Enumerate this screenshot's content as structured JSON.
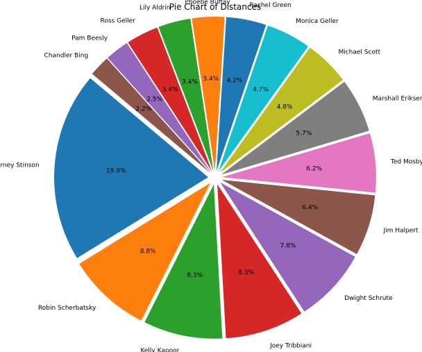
{
  "chart_data": {
    "type": "pie",
    "title": "Pie Chart of Distances",
    "slices": [
      {
        "label": "Barney Stinson",
        "value": 19.9,
        "pct_label": "19.9%",
        "color": "#1f77b4"
      },
      {
        "label": "Robin Scherbatsky",
        "value": 8.8,
        "pct_label": "8.8%",
        "color": "#ff7f0e"
      },
      {
        "label": "Kelly Kapoor",
        "value": 8.3,
        "pct_label": "8.3%",
        "color": "#2ca02c"
      },
      {
        "label": "Joey Tribbiani",
        "value": 8.3,
        "pct_label": "8.3%",
        "color": "#d62728"
      },
      {
        "label": "Dwight Schrute",
        "value": 7.8,
        "pct_label": "7.8%",
        "color": "#9467bd"
      },
      {
        "label": "Jim Halpert",
        "value": 6.4,
        "pct_label": "6.4%",
        "color": "#8c564b"
      },
      {
        "label": "Ted Mosby",
        "value": 6.2,
        "pct_label": "6.2%",
        "color": "#e377c2"
      },
      {
        "label": "Marshall Eriksen",
        "value": 5.7,
        "pct_label": "5.7%",
        "color": "#7f7f7f"
      },
      {
        "label": "Michael Scott",
        "value": 4.8,
        "pct_label": "4.8%",
        "color": "#bcbd22"
      },
      {
        "label": "Monica Geller",
        "value": 4.7,
        "pct_label": "4.7%",
        "color": "#17becf"
      },
      {
        "label": "Rachel Green",
        "value": 4.2,
        "pct_label": "4.2%",
        "color": "#1f77b4"
      },
      {
        "label": "Phoebe Buffay",
        "value": 3.4,
        "pct_label": "3.4%",
        "color": "#ff7f0e"
      },
      {
        "label": "Lily Aldrin",
        "value": 3.4,
        "pct_label": "3.4%",
        "color": "#2ca02c"
      },
      {
        "label": "Ross Geller",
        "value": 3.4,
        "pct_label": "3.4%",
        "color": "#d62728"
      },
      {
        "label": "Pam Beesly",
        "value": 2.5,
        "pct_label": "2.5%",
        "color": "#9467bd"
      },
      {
        "label": "Chandler Bing",
        "value": 2.2,
        "pct_label": "2.2%",
        "color": "#8c564b"
      }
    ],
    "exploded": true
  }
}
